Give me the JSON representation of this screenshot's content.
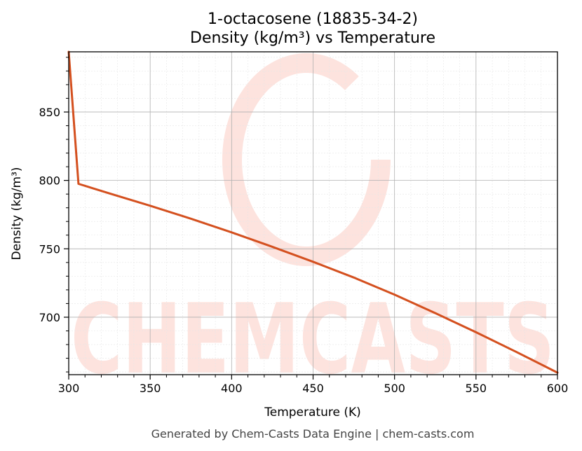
{
  "chart_data": {
    "type": "line",
    "title": "1-octacosene (18835-34-2)",
    "subtitle": "Density (kg/m³) vs Temperature",
    "xlabel": "Temperature (K)",
    "ylabel": "Density (kg/m³)",
    "xlim": [
      300,
      600
    ],
    "ylim": [
      658,
      894
    ],
    "x_ticks": [
      300,
      350,
      400,
      450,
      500,
      550,
      600
    ],
    "y_ticks": [
      700,
      750,
      800,
      850
    ],
    "grid": true,
    "line_color": "#d4501f",
    "series": [
      {
        "x": [
          300,
          306,
          325,
          350,
          375,
          400,
          425,
          450,
          475,
          500,
          525,
          550,
          575,
          600
        ],
        "values": [
          894,
          797.5,
          790.5,
          781.5,
          772,
          762,
          751.5,
          740.5,
          729,
          716.5,
          703,
          689,
          674.5,
          659.5
        ]
      }
    ],
    "watermark": "CHEMCASTS"
  },
  "footer": "Generated by Chem-Casts Data Engine | chem-casts.com"
}
